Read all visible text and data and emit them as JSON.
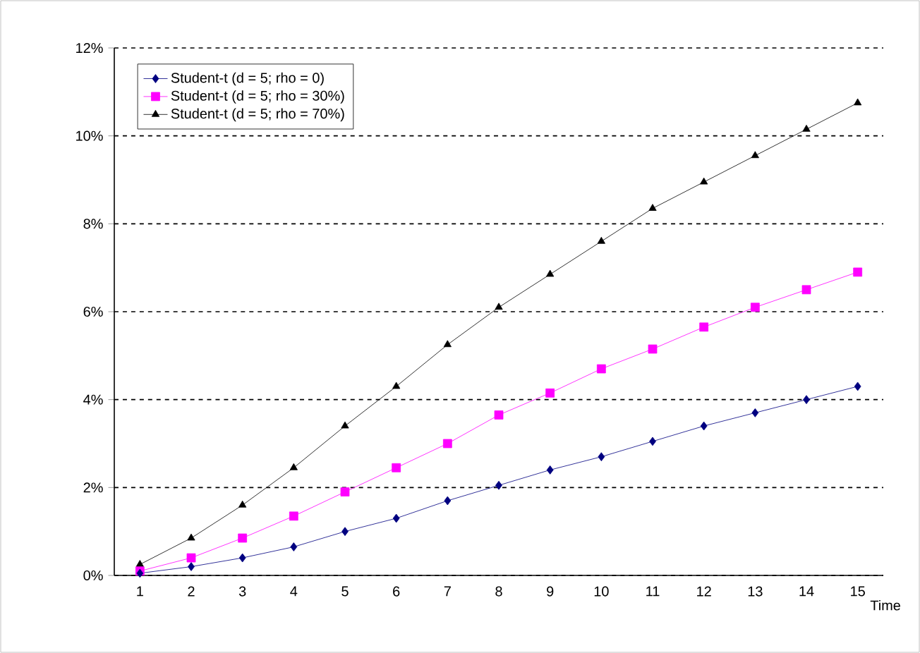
{
  "chart_data": {
    "type": "line",
    "xlabel": "Time",
    "categories": [
      "1",
      "2",
      "3",
      "4",
      "5",
      "6",
      "7",
      "8",
      "9",
      "10",
      "11",
      "12",
      "13",
      "14",
      "15"
    ],
    "series": [
      {
        "name": "Student-t (d = 5; rho = 0)",
        "color": "#000080",
        "marker": "diamond",
        "values": [
          0.05,
          0.2,
          0.4,
          0.65,
          1.0,
          1.3,
          1.7,
          2.05,
          2.4,
          2.7,
          3.05,
          3.4,
          3.7,
          4.0,
          4.3
        ]
      },
      {
        "name": "Student-t (d = 5; rho = 30%)",
        "color": "#ff00ff",
        "marker": "square",
        "values": [
          0.1,
          0.4,
          0.85,
          1.35,
          1.9,
          2.45,
          3.0,
          3.65,
          4.15,
          4.7,
          5.15,
          5.65,
          6.1,
          6.5,
          6.9
        ]
      },
      {
        "name": "Student-t (d = 5; rho = 70%)",
        "color": "#000000",
        "marker": "triangle",
        "values": [
          0.25,
          0.85,
          1.6,
          2.45,
          3.4,
          4.3,
          5.25,
          6.1,
          6.85,
          7.6,
          8.35,
          8.95,
          9.55,
          10.15,
          10.75
        ]
      }
    ],
    "ylim": [
      0,
      12
    ],
    "yticks": [
      {
        "value": 0,
        "label": "0%"
      },
      {
        "value": 2,
        "label": "2%"
      },
      {
        "value": 4,
        "label": "4%"
      },
      {
        "value": 6,
        "label": "6%"
      },
      {
        "value": 8,
        "label": "8%"
      },
      {
        "value": 10,
        "label": "10%"
      },
      {
        "value": 12,
        "label": "12%"
      }
    ],
    "grid": "y",
    "legend": "top left",
    "line_style": "solid"
  }
}
